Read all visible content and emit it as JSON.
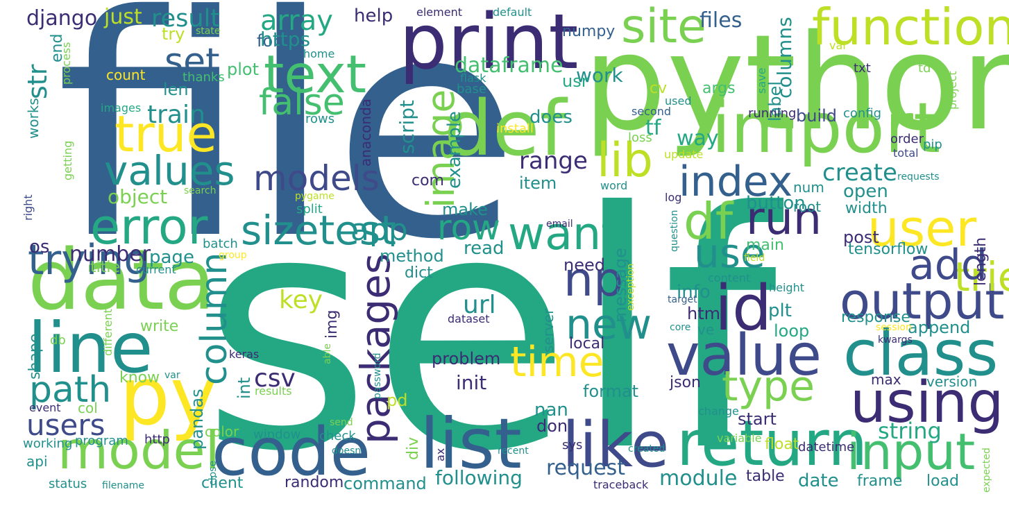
{
  "palette": {
    "dark_purple": "#440154",
    "indigo": "#3b2c74",
    "blue": "#33608d",
    "dark_blue": "#3e4a89",
    "teal": "#21908c",
    "green_teal": "#24a884",
    "green": "#44bf70",
    "light_green": "#7ad151",
    "lime": "#bddf26",
    "yellow": "#fde725"
  },
  "words": [
    {
      "text": "file",
      "color": "#33608d"
    },
    {
      "text": "self",
      "color": "#24a884"
    },
    {
      "text": "python",
      "color": "#7ad151"
    },
    {
      "text": "print",
      "color": "#3b2c74"
    },
    {
      "text": "import",
      "color": "#7ad151"
    },
    {
      "text": "def",
      "color": "#7ad151"
    },
    {
      "text": "data",
      "color": "#7ad151"
    },
    {
      "text": "py",
      "color": "#fde725"
    },
    {
      "text": "line",
      "color": "#21908c"
    },
    {
      "text": "code",
      "color": "#33608d"
    },
    {
      "text": "list",
      "color": "#33608d"
    },
    {
      "text": "like",
      "color": "#3e4a89"
    },
    {
      "text": "return",
      "color": "#24a884"
    },
    {
      "text": "input",
      "color": "#44bf70"
    },
    {
      "text": "class",
      "color": "#21908c"
    },
    {
      "text": "using",
      "color": "#3b2c74"
    },
    {
      "text": "value",
      "color": "#3e4a89"
    },
    {
      "text": "output",
      "color": "#3e4a89"
    },
    {
      "text": "id",
      "color": "#3b2c74"
    },
    {
      "text": "model",
      "color": "#7ad151"
    },
    {
      "text": "error",
      "color": "#24a884"
    },
    {
      "text": "text",
      "color": "#44bf70"
    },
    {
      "text": "true",
      "color": "#fde725"
    },
    {
      "text": "values",
      "color": "#21908c"
    },
    {
      "text": "trying",
      "color": "#33608d"
    },
    {
      "text": "site",
      "color": "#7ad151"
    },
    {
      "text": "function",
      "color": "#bddf26"
    },
    {
      "text": "lib",
      "color": "#bddf26"
    },
    {
      "text": "df",
      "color": "#7ad151"
    },
    {
      "text": "user",
      "color": "#fde725"
    },
    {
      "text": "tried",
      "color": "#bddf26"
    },
    {
      "text": "index",
      "color": "#33608d"
    },
    {
      "text": "run",
      "color": "#3b2c74"
    },
    {
      "text": "use",
      "color": "#21908c"
    },
    {
      "text": "add",
      "color": "#3e4a89"
    },
    {
      "text": "want",
      "color": "#24a884"
    },
    {
      "text": "np",
      "color": "#3e4a89"
    },
    {
      "text": "new",
      "color": "#21908c"
    },
    {
      "text": "time",
      "color": "#fde725"
    },
    {
      "text": "type",
      "color": "#7ad151"
    },
    {
      "text": "image",
      "color": "#7ad151"
    },
    {
      "text": "packages",
      "color": "#3b2c74"
    },
    {
      "text": "sizetest",
      "color": "#21908c"
    },
    {
      "text": "row",
      "color": "#24a884"
    },
    {
      "text": "column",
      "color": "#21908c"
    },
    {
      "text": "models",
      "color": "#3e4a89"
    },
    {
      "text": "false",
      "color": "#44bf70"
    },
    {
      "text": "set",
      "color": "#33608d"
    },
    {
      "text": "result",
      "color": "#21908c"
    },
    {
      "text": "array",
      "color": "#24a884"
    },
    {
      "text": "train",
      "color": "#21908c"
    },
    {
      "text": "path",
      "color": "#21908c"
    },
    {
      "text": "users",
      "color": "#3e4a89"
    },
    {
      "text": "str",
      "color": "#21908c"
    },
    {
      "text": "django",
      "color": "#3b2c74"
    },
    {
      "text": "just",
      "color": "#bddf26"
    },
    {
      "text": "form",
      "color": "#33608d"
    },
    {
      "text": "try",
      "color": "#bddf26"
    },
    {
      "text": "https",
      "color": "#21908c"
    },
    {
      "text": "help",
      "color": "#3b2c74"
    },
    {
      "text": "element",
      "color": "#3b2c74"
    },
    {
      "text": "default",
      "color": "#21908c"
    },
    {
      "text": "work",
      "color": "#21908c"
    },
    {
      "text": "files",
      "color": "#33608d"
    },
    {
      "text": "numpy",
      "color": "#33608d"
    },
    {
      "text": "columns",
      "color": "#21908c"
    },
    {
      "text": "dataframe",
      "color": "#44bf70"
    },
    {
      "text": "plot",
      "color": "#44bf70"
    },
    {
      "text": "count",
      "color": "#fde725"
    },
    {
      "text": "thanks",
      "color": "#44bf70"
    },
    {
      "text": "end",
      "color": "#21908c"
    },
    {
      "text": "process",
      "color": "#7ad151"
    },
    {
      "text": "state",
      "color": "#7ad151"
    },
    {
      "text": "home",
      "color": "#21908c"
    },
    {
      "text": "len",
      "color": "#21908c"
    },
    {
      "text": "usr",
      "color": "#24a884"
    },
    {
      "text": "base",
      "color": "#21908c"
    },
    {
      "text": "flask",
      "color": "#21908c"
    },
    {
      "text": "label",
      "color": "#21908c"
    },
    {
      "text": "args",
      "color": "#44bf70"
    },
    {
      "text": "cv",
      "color": "#bddf26"
    },
    {
      "text": "val",
      "color": "#bddf26"
    },
    {
      "text": "txt",
      "color": "#3b2c74"
    },
    {
      "text": "td",
      "color": "#7ad151"
    },
    {
      "text": "save",
      "color": "#24a884"
    },
    {
      "text": "project",
      "color": "#7ad151"
    },
    {
      "text": "images",
      "color": "#24a884"
    },
    {
      "text": "works",
      "color": "#21908c"
    },
    {
      "text": "getting",
      "color": "#7ad151"
    },
    {
      "text": "anaconda",
      "color": "#3b2c74"
    },
    {
      "text": "script",
      "color": "#21908c"
    },
    {
      "text": "example",
      "color": "#21908c"
    },
    {
      "text": "does",
      "color": "#21908c"
    },
    {
      "text": "tf",
      "color": "#24a884"
    },
    {
      "text": "way",
      "color": "#24a884"
    },
    {
      "text": "used",
      "color": "#21908c"
    },
    {
      "text": "second",
      "color": "#33608d"
    },
    {
      "text": "build",
      "color": "#3e4a89"
    },
    {
      "text": "config",
      "color": "#21908c"
    },
    {
      "text": "running",
      "color": "#3b2c74"
    },
    {
      "text": "rows",
      "color": "#21908c"
    },
    {
      "text": "install",
      "color": "#fde725"
    },
    {
      "text": "loss",
      "color": "#7ad151"
    },
    {
      "text": "update",
      "color": "#bddf26"
    },
    {
      "text": "order",
      "color": "#3b2c74"
    },
    {
      "text": "pip",
      "color": "#21908c"
    },
    {
      "text": "total",
      "color": "#3e4a89"
    },
    {
      "text": "requests",
      "color": "#21908c"
    },
    {
      "text": "create",
      "color": "#21908c"
    },
    {
      "text": "range",
      "color": "#3b2c74"
    },
    {
      "text": "item",
      "color": "#21908c"
    },
    {
      "text": "com",
      "color": "#3b2c74"
    },
    {
      "text": "num",
      "color": "#21908c"
    },
    {
      "text": "root",
      "color": "#21908c"
    },
    {
      "text": "word",
      "color": "#21908c"
    },
    {
      "text": "log",
      "color": "#3b2c74"
    },
    {
      "text": "open",
      "color": "#21908c"
    },
    {
      "text": "button",
      "color": "#21908c"
    },
    {
      "text": "width",
      "color": "#21908c"
    },
    {
      "text": "object",
      "color": "#7ad151"
    },
    {
      "text": "search",
      "color": "#7ad151"
    },
    {
      "text": "pygame",
      "color": "#bddf26"
    },
    {
      "text": "split",
      "color": "#24a884"
    },
    {
      "text": "make",
      "color": "#21908c"
    },
    {
      "text": "right",
      "color": "#3e4a89"
    },
    {
      "text": "os",
      "color": "#3b2c74"
    },
    {
      "text": "number",
      "color": "#3b2c74"
    },
    {
      "text": "page",
      "color": "#21908c"
    },
    {
      "text": "method",
      "color": "#21908c"
    },
    {
      "text": "read",
      "color": "#21908c"
    },
    {
      "text": "main",
      "color": "#44bf70"
    },
    {
      "text": "post",
      "color": "#3b2c74"
    },
    {
      "text": "tensorflow",
      "color": "#21908c"
    },
    {
      "text": "length",
      "color": "#3b2c74"
    },
    {
      "text": "email",
      "color": "#3b2c74"
    },
    {
      "text": "question",
      "color": "#21908c"
    },
    {
      "text": "title",
      "color": "#7ad151"
    },
    {
      "text": "current",
      "color": "#21908c"
    },
    {
      "text": "group",
      "color": "#fde725"
    },
    {
      "text": "batch",
      "color": "#21908c"
    },
    {
      "text": "dict",
      "color": "#21908c"
    },
    {
      "text": "need",
      "color": "#3b2c74"
    },
    {
      "text": "message",
      "color": "#21908c"
    },
    {
      "text": "field",
      "color": "#bddf26"
    },
    {
      "text": "info",
      "color": "#21908c"
    },
    {
      "text": "content",
      "color": "#21908c"
    },
    {
      "text": "height",
      "color": "#21908c"
    },
    {
      "text": "exception",
      "color": "#bddf26"
    },
    {
      "text": "target",
      "color": "#33608d"
    },
    {
      "text": "key",
      "color": "#bddf26"
    },
    {
      "text": "url",
      "color": "#21908c"
    },
    {
      "text": "plt",
      "color": "#21908c"
    },
    {
      "text": "html",
      "color": "#3b2c74"
    },
    {
      "text": "ve",
      "color": "#21908c"
    },
    {
      "text": "response",
      "color": "#21908c"
    },
    {
      "text": "append",
      "color": "#21908c"
    },
    {
      "text": "loop",
      "color": "#24a884"
    },
    {
      "text": "core",
      "color": "#21908c"
    },
    {
      "text": "session",
      "color": "#fde725"
    },
    {
      "text": "kwargs",
      "color": "#3b2c74"
    },
    {
      "text": "different",
      "color": "#7ad151"
    },
    {
      "text": "write",
      "color": "#7ad151"
    },
    {
      "text": "db",
      "color": "#7ad151"
    },
    {
      "text": "shape",
      "color": "#21908c"
    },
    {
      "text": "img",
      "color": "#3b2c74"
    },
    {
      "text": "able",
      "color": "#7ad151"
    },
    {
      "text": "dataset",
      "color": "#3b2c74"
    },
    {
      "text": "server",
      "color": "#21908c"
    },
    {
      "text": "local",
      "color": "#3b2c74"
    },
    {
      "text": "keras",
      "color": "#3b2c74"
    },
    {
      "text": "problem",
      "color": "#3b2c74"
    },
    {
      "text": "init",
      "color": "#3b2c74"
    },
    {
      "text": "csv",
      "color": "#3b2c74"
    },
    {
      "text": "know",
      "color": "#7ad151"
    },
    {
      "text": "var",
      "color": "#21908c"
    },
    {
      "text": "int",
      "color": "#21908c"
    },
    {
      "text": "password",
      "color": "#21908c"
    },
    {
      "text": "pd",
      "color": "#bddf26"
    },
    {
      "text": "format",
      "color": "#21908c"
    },
    {
      "text": "json",
      "color": "#3b2c74"
    },
    {
      "text": "max",
      "color": "#3b2c74"
    },
    {
      "text": "version",
      "color": "#21908c"
    },
    {
      "text": "results",
      "color": "#7ad151"
    },
    {
      "text": "event",
      "color": "#3b2c74"
    },
    {
      "text": "col",
      "color": "#7ad151"
    },
    {
      "text": "pandas",
      "color": "#21908c"
    },
    {
      "text": "div",
      "color": "#7ad151"
    },
    {
      "text": "nan",
      "color": "#21908c"
    },
    {
      "text": "start",
      "color": "#3b2c74"
    },
    {
      "text": "change",
      "color": "#21908c"
    },
    {
      "text": "close",
      "color": "#21908c"
    },
    {
      "text": "color",
      "color": "#7ad151"
    },
    {
      "text": "window",
      "color": "#21908c"
    },
    {
      "text": "don",
      "color": "#3b2c74"
    },
    {
      "text": "string",
      "color": "#24a884"
    },
    {
      "text": "working",
      "color": "#21908c"
    },
    {
      "text": "program",
      "color": "#21908c"
    },
    {
      "text": "send",
      "color": "#7ad151"
    },
    {
      "text": "check",
      "color": "#21908c"
    },
    {
      "text": "ax",
      "color": "#3b2c74"
    },
    {
      "text": "sys",
      "color": "#3b2c74"
    },
    {
      "text": "created",
      "color": "#21908c"
    },
    {
      "text": "variable",
      "color": "#7ad151"
    },
    {
      "text": "float",
      "color": "#bddf26"
    },
    {
      "text": "datetime",
      "color": "#3b2c74"
    },
    {
      "text": "doesn",
      "color": "#21908c"
    },
    {
      "text": "http",
      "color": "#3b2c74"
    },
    {
      "text": "api",
      "color": "#21908c"
    },
    {
      "text": "app",
      "color": "#21908c"
    },
    {
      "text": "request",
      "color": "#33608d"
    },
    {
      "text": "module",
      "color": "#21908c"
    },
    {
      "text": "following",
      "color": "#21908c"
    },
    {
      "text": "command",
      "color": "#21908c"
    },
    {
      "text": "random",
      "color": "#3b2c74"
    },
    {
      "text": "client",
      "color": "#21908c"
    },
    {
      "text": "recent",
      "color": "#21908c"
    },
    {
      "text": "date",
      "color": "#21908c"
    },
    {
      "text": "frame",
      "color": "#21908c"
    },
    {
      "text": "load",
      "color": "#21908c"
    },
    {
      "text": "table",
      "color": "#3b2c74"
    },
    {
      "text": "traceback",
      "color": "#3b2c74"
    },
    {
      "text": "status",
      "color": "#21908c"
    },
    {
      "text": "filename",
      "color": "#21908c"
    },
    {
      "text": "expected",
      "color": "#7ad151"
    }
  ]
}
